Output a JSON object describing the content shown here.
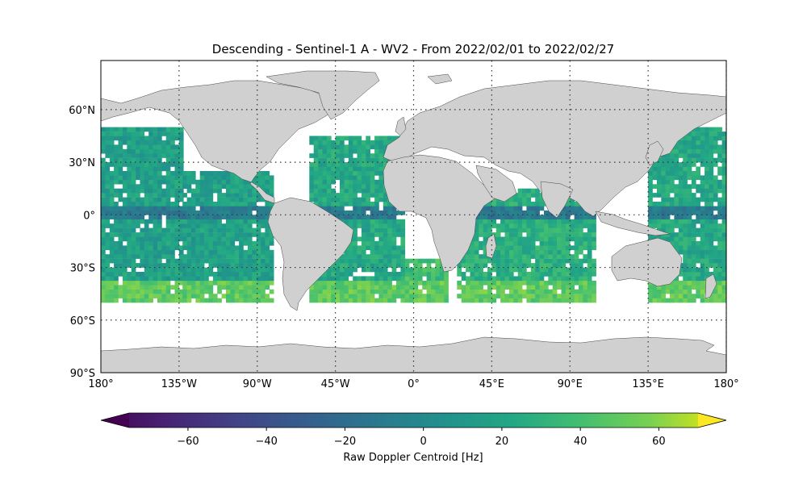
{
  "title": "Descending - Sentinel-1 A - WV2 - From 2022/02/01 to 2022/02/27",
  "map": {
    "projection": "plate-carree",
    "lon_range": [
      -180,
      180
    ],
    "lat_range": [
      -90,
      90
    ],
    "land_color": "#d0d0d0",
    "coast_color": "#444444",
    "gridlines": "dotted",
    "lat_ticks": [
      {
        "value": 60,
        "label": "60°N"
      },
      {
        "value": 30,
        "label": "30°N"
      },
      {
        "value": 0,
        "label": "0°"
      },
      {
        "value": -30,
        "label": "30°S"
      },
      {
        "value": -60,
        "label": "60°S"
      },
      {
        "value": -90,
        "label": "90°S"
      }
    ],
    "lon_ticks": [
      {
        "value": -180,
        "label": "180°"
      },
      {
        "value": -135,
        "label": "135°W"
      },
      {
        "value": -90,
        "label": "90°W"
      },
      {
        "value": -45,
        "label": "45°W"
      },
      {
        "value": 0,
        "label": "0°"
      },
      {
        "value": 45,
        "label": "45°E"
      },
      {
        "value": 90,
        "label": "90°E"
      },
      {
        "value": 135,
        "label": "135°E"
      },
      {
        "value": 180,
        "label": "180°"
      }
    ]
  },
  "chart_data": {
    "type": "heatmap",
    "title": "Descending - Sentinel-1 A - WV2 - From 2022/02/01 to 2022/02/27",
    "variable": "Raw Doppler Centroid [Hz]",
    "colormap": "viridis",
    "value_range": [
      -75,
      70
    ],
    "colorbar_extend": "both",
    "data_lat_range": [
      -50,
      50
    ],
    "swaths": [
      {
        "region": "North & Central Pacific (east of dateline)",
        "lon": [
          -180,
          -133
        ],
        "lat": [
          -50,
          50
        ],
        "typical_hz": 15
      },
      {
        "region": "East Pacific",
        "lon": [
          -133,
          -82
        ],
        "lat": [
          -50,
          25
        ],
        "typical_hz": 15
      },
      {
        "region": "Atlantic",
        "lon": [
          -60,
          -5
        ],
        "lat": [
          -50,
          45
        ],
        "typical_hz": 20
      },
      {
        "region": "South Atlantic / SW Indian",
        "lon": [
          -5,
          20
        ],
        "lat": [
          -50,
          -25
        ],
        "typical_hz": 35
      },
      {
        "region": "Indian Ocean",
        "lon": [
          25,
          105
        ],
        "lat": [
          -50,
          15
        ],
        "typical_hz": 25
      },
      {
        "region": "West Pacific",
        "lon": [
          135,
          180
        ],
        "lat": [
          -50,
          50
        ],
        "typical_hz": 20
      }
    ],
    "band_features": [
      {
        "lat_range": [
          -4,
          4
        ],
        "note": "equatorial band with lower values",
        "typical_hz": -10
      },
      {
        "lat_range": [
          -50,
          -38
        ],
        "note": "southern ocean band with higher values",
        "typical_hz": 45
      }
    ],
    "colorbar_ticks": [
      {
        "value": -60,
        "label": "−60"
      },
      {
        "value": -40,
        "label": "−40"
      },
      {
        "value": -20,
        "label": "−20"
      },
      {
        "value": 0,
        "label": "0"
      },
      {
        "value": 20,
        "label": "20"
      },
      {
        "value": 40,
        "label": "40"
      },
      {
        "value": 60,
        "label": "60"
      }
    ]
  }
}
